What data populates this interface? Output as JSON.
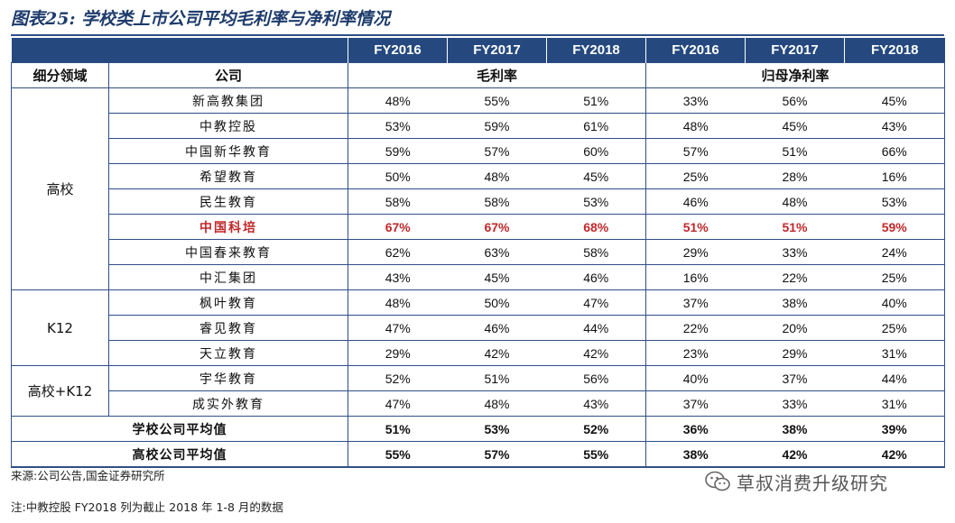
{
  "title": "图表25: 学校类上市公司平均毛利率与净利率情况",
  "header": {
    "years": [
      "FY2016",
      "FY2017",
      "FY2018",
      "FY2016",
      "FY2017",
      "FY2018"
    ],
    "segment_col": "细分领域",
    "company_col": "公司",
    "gross_margin": "毛利率",
    "net_margin": "归母净利率"
  },
  "groups": [
    {
      "segment": "高校",
      "rows": [
        {
          "company": "新高教集团",
          "values": [
            "48%",
            "55%",
            "51%",
            "33%",
            "56%",
            "45%"
          ]
        },
        {
          "company": "中教控股",
          "values": [
            "53%",
            "59%",
            "61%",
            "48%",
            "45%",
            "43%"
          ]
        },
        {
          "company": "中国新华教育",
          "values": [
            "59%",
            "57%",
            "60%",
            "57%",
            "51%",
            "66%"
          ]
        },
        {
          "company": "希望教育",
          "values": [
            "50%",
            "48%",
            "45%",
            "25%",
            "28%",
            "16%"
          ]
        },
        {
          "company": "民生教育",
          "values": [
            "58%",
            "58%",
            "53%",
            "46%",
            "48%",
            "53%"
          ]
        },
        {
          "company": "中国科培",
          "values": [
            "67%",
            "67%",
            "68%",
            "51%",
            "51%",
            "59%"
          ],
          "highlight": true
        },
        {
          "company": "中国春来教育",
          "values": [
            "62%",
            "63%",
            "58%",
            "29%",
            "33%",
            "24%"
          ]
        },
        {
          "company": "中汇集团",
          "values": [
            "43%",
            "45%",
            "46%",
            "16%",
            "22%",
            "25%"
          ]
        }
      ]
    },
    {
      "segment": "K12",
      "rows": [
        {
          "company": "枫叶教育",
          "values": [
            "48%",
            "50%",
            "47%",
            "37%",
            "38%",
            "40%"
          ]
        },
        {
          "company": "睿见教育",
          "values": [
            "47%",
            "46%",
            "44%",
            "22%",
            "20%",
            "25%"
          ]
        },
        {
          "company": "天立教育",
          "values": [
            "29%",
            "42%",
            "42%",
            "23%",
            "29%",
            "31%"
          ]
        }
      ]
    },
    {
      "segment": "高校+K12",
      "rows": [
        {
          "company": "宇华教育",
          "values": [
            "52%",
            "51%",
            "56%",
            "40%",
            "37%",
            "44%"
          ]
        },
        {
          "company": "成实外教育",
          "values": [
            "47%",
            "48%",
            "43%",
            "37%",
            "33%",
            "31%"
          ]
        }
      ]
    }
  ],
  "averages": [
    {
      "label": "学校公司平均值",
      "values": [
        "51%",
        "53%",
        "52%",
        "36%",
        "38%",
        "39%"
      ]
    },
    {
      "label": "高校公司平均值",
      "values": [
        "55%",
        "57%",
        "55%",
        "38%",
        "42%",
        "42%"
      ]
    }
  ],
  "source": "来源:公司公告,国金证券研究所",
  "footnote": "注:中教控股 FY2018 列为截止 2018 年 1-8 月的数据",
  "watermark": "草叔消费升级研究",
  "colors": {
    "header_bg": "#25497f",
    "highlight": "#c0282a",
    "rule": "#2f4f86"
  },
  "icons": {
    "watermark": "wechat-icon"
  }
}
